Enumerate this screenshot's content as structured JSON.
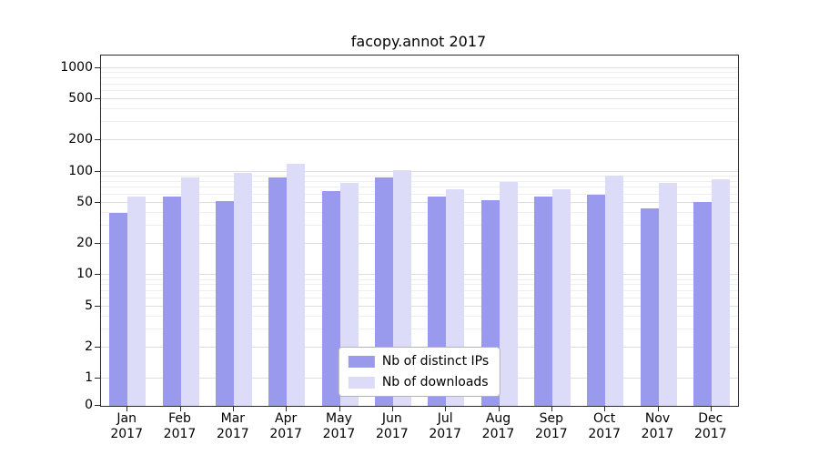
{
  "chart_data": {
    "type": "bar",
    "title": "facopy.annot 2017",
    "scale": "symlog",
    "grid": "horizontal",
    "legend_position": "lower center",
    "year": "2017",
    "categories": [
      "Jan",
      "Feb",
      "Mar",
      "Apr",
      "May",
      "Jun",
      "Jul",
      "Aug",
      "Sep",
      "Oct",
      "Nov",
      "Dec"
    ],
    "series": [
      {
        "name": "Nb of distinct IPs",
        "color": "#9999ee",
        "values": [
          40,
          57,
          52,
          88,
          65,
          88,
          58,
          53,
          58,
          60,
          44,
          51
        ]
      },
      {
        "name": "Nb of downloads",
        "color": "#dcdcf8",
        "values": [
          58,
          88,
          97,
          120,
          78,
          104,
          68,
          80,
          68,
          92,
          78,
          85
        ]
      }
    ],
    "y_ticks": [
      0,
      1,
      2,
      5,
      10,
      20,
      50,
      100,
      200,
      500,
      1000
    ],
    "ylim": [
      0,
      1300
    ],
    "xlabel": "",
    "ylabel": ""
  }
}
